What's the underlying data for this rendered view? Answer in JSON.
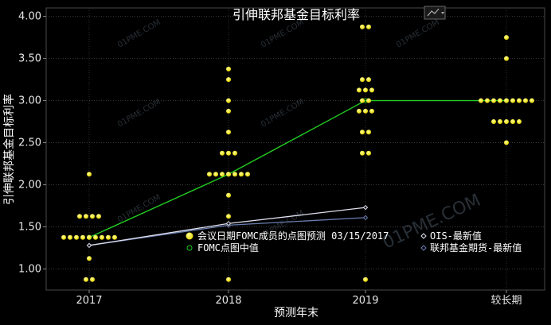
{
  "chart_data": {
    "type": "scatter",
    "title": "引伸联邦基金目标利率",
    "xlabel": "预测年末",
    "ylabel": "引伸联邦基金目标利率",
    "categories": [
      "2017",
      "2018",
      "2019",
      "较长期"
    ],
    "ylim": [
      0.75,
      4.1
    ],
    "yticks": [
      1.0,
      1.5,
      2.0,
      2.5,
      3.0,
      3.5,
      4.0
    ],
    "ytick_labels": [
      "1.00",
      "1.50",
      "2.00",
      "2.50",
      "3.00",
      "3.50",
      "4.00"
    ],
    "grid": true,
    "legend_position": "bottom-right",
    "dots": {
      "name": "会议日期FOMC成员的点图预测 03/15/2017",
      "color": "#ffff00",
      "points": [
        {
          "category": "2017",
          "value": 0.875,
          "count": 2
        },
        {
          "category": "2017",
          "value": 1.125,
          "count": 1
        },
        {
          "category": "2017",
          "value": 1.375,
          "count": 9
        },
        {
          "category": "2017",
          "value": 1.625,
          "count": 4
        },
        {
          "category": "2017",
          "value": 2.125,
          "count": 1
        },
        {
          "category": "2018",
          "value": 0.875,
          "count": 1
        },
        {
          "category": "2018",
          "value": 1.625,
          "count": 1
        },
        {
          "category": "2018",
          "value": 1.875,
          "count": 1
        },
        {
          "category": "2018",
          "value": 2.125,
          "count": 7
        },
        {
          "category": "2018",
          "value": 2.375,
          "count": 3
        },
        {
          "category": "2018",
          "value": 2.625,
          "count": 1
        },
        {
          "category": "2018",
          "value": 2.875,
          "count": 1
        },
        {
          "category": "2018",
          "value": 3.0,
          "count": 1
        },
        {
          "category": "2018",
          "value": 3.25,
          "count": 1
        },
        {
          "category": "2018",
          "value": 3.375,
          "count": 1
        },
        {
          "category": "2019",
          "value": 0.875,
          "count": 1
        },
        {
          "category": "2019",
          "value": 2.375,
          "count": 2
        },
        {
          "category": "2019",
          "value": 2.625,
          "count": 2
        },
        {
          "category": "2019",
          "value": 2.875,
          "count": 3
        },
        {
          "category": "2019",
          "value": 3.0,
          "count": 2
        },
        {
          "category": "2019",
          "value": 3.125,
          "count": 3
        },
        {
          "category": "2019",
          "value": 3.25,
          "count": 2
        },
        {
          "category": "2019",
          "value": 3.875,
          "count": 2
        },
        {
          "category": "较长期",
          "value": 2.5,
          "count": 1
        },
        {
          "category": "较长期",
          "value": 2.75,
          "count": 5
        },
        {
          "category": "较长期",
          "value": 3.0,
          "count": 9
        },
        {
          "category": "较长期",
          "value": 3.5,
          "count": 1
        },
        {
          "category": "较长期",
          "value": 3.75,
          "count": 1
        }
      ]
    },
    "series": [
      {
        "name": "FOMC点图中值",
        "color": "#22cc22",
        "marker": "ring",
        "values": [
          1.375,
          2.125,
          3.0,
          3.0
        ]
      },
      {
        "name": "OIS-最新值",
        "color": "#e0e0f0",
        "marker": "diamond",
        "values": [
          1.28,
          1.54,
          1.73,
          null
        ]
      },
      {
        "name": "联邦基金期货-最新值",
        "color": "#6a7fb0",
        "marker": "diamond",
        "values": [
          1.28,
          1.52,
          1.61,
          null
        ]
      }
    ]
  },
  "watermark": "01PME.COM",
  "chart_menu_icon": "line-chart-menu-icon"
}
